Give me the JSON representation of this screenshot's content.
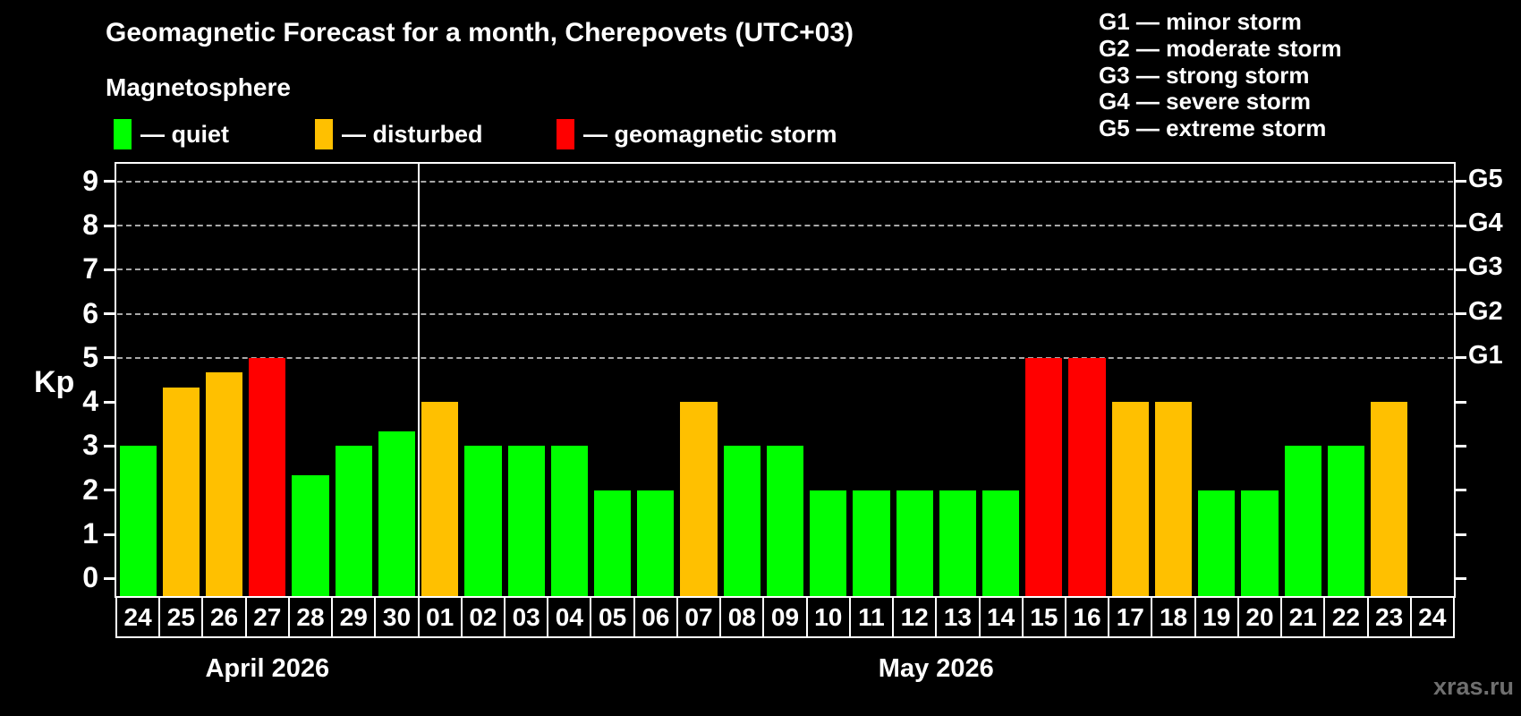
{
  "page": {
    "title": "Geomagnetic Forecast for a month, Cherepovets (UTC+03)",
    "subtitle": "Magnetosphere",
    "watermark": "xras.ru"
  },
  "legend": {
    "items": [
      {
        "key": "quiet",
        "label": "— quiet",
        "color": "#00ff00"
      },
      {
        "key": "disturbed",
        "label": "— disturbed",
        "color": "#ffc000"
      },
      {
        "key": "storm",
        "label": "— geomagnetic storm",
        "color": "#ff0000"
      }
    ]
  },
  "g_legend": {
    "lines": [
      "G1 — minor storm",
      "G2 — moderate storm",
      "G3 — strong storm",
      "G4 — severe storm",
      "G5 — extreme storm"
    ]
  },
  "chart_data": {
    "type": "bar",
    "title": "Geomagnetic Forecast for a month, Cherepovets (UTC+03)",
    "ylabel": "Kp",
    "ylim": [
      -0.4,
      9.4
    ],
    "yticks": [
      0,
      1,
      2,
      3,
      4,
      5,
      6,
      7,
      8,
      9
    ],
    "gridlines_at": [
      5,
      6,
      7,
      8,
      9
    ],
    "grid": "dashed-above-5-only",
    "legend_position": "top-left",
    "right_scale": [
      {
        "kp": 5,
        "label": "G1"
      },
      {
        "kp": 6,
        "label": "G2"
      },
      {
        "kp": 7,
        "label": "G3"
      },
      {
        "kp": 8,
        "label": "G4"
      },
      {
        "kp": 9,
        "label": "G5"
      }
    ],
    "status_colors": {
      "quiet": "#00ff00",
      "disturbed": "#ffc000",
      "storm": "#ff0000"
    },
    "months": [
      {
        "label": "April 2026",
        "start_index": 0,
        "days": 7
      },
      {
        "label": "May 2026",
        "start_index": 7,
        "days": 24
      }
    ],
    "bars": [
      {
        "day": "24",
        "kp": 3.0,
        "status": "quiet"
      },
      {
        "day": "25",
        "kp": 4.33,
        "status": "disturbed"
      },
      {
        "day": "26",
        "kp": 4.67,
        "status": "disturbed"
      },
      {
        "day": "27",
        "kp": 5.0,
        "status": "storm"
      },
      {
        "day": "28",
        "kp": 2.33,
        "status": "quiet"
      },
      {
        "day": "29",
        "kp": 3.0,
        "status": "quiet"
      },
      {
        "day": "30",
        "kp": 3.33,
        "status": "quiet"
      },
      {
        "day": "01",
        "kp": 4.0,
        "status": "disturbed"
      },
      {
        "day": "02",
        "kp": 3.0,
        "status": "quiet"
      },
      {
        "day": "03",
        "kp": 3.0,
        "status": "quiet"
      },
      {
        "day": "04",
        "kp": 3.0,
        "status": "quiet"
      },
      {
        "day": "05",
        "kp": 2.0,
        "status": "quiet"
      },
      {
        "day": "06",
        "kp": 2.0,
        "status": "quiet"
      },
      {
        "day": "07",
        "kp": 4.0,
        "status": "disturbed"
      },
      {
        "day": "08",
        "kp": 3.0,
        "status": "quiet"
      },
      {
        "day": "09",
        "kp": 3.0,
        "status": "quiet"
      },
      {
        "day": "10",
        "kp": 2.0,
        "status": "quiet"
      },
      {
        "day": "11",
        "kp": 2.0,
        "status": "quiet"
      },
      {
        "day": "12",
        "kp": 2.0,
        "status": "quiet"
      },
      {
        "day": "13",
        "kp": 2.0,
        "status": "quiet"
      },
      {
        "day": "14",
        "kp": 2.0,
        "status": "quiet"
      },
      {
        "day": "15",
        "kp": 5.0,
        "status": "storm"
      },
      {
        "day": "16",
        "kp": 5.0,
        "status": "storm"
      },
      {
        "day": "17",
        "kp": 4.0,
        "status": "disturbed"
      },
      {
        "day": "18",
        "kp": 4.0,
        "status": "disturbed"
      },
      {
        "day": "19",
        "kp": 2.0,
        "status": "quiet"
      },
      {
        "day": "20",
        "kp": 2.0,
        "status": "quiet"
      },
      {
        "day": "21",
        "kp": 3.0,
        "status": "quiet"
      },
      {
        "day": "22",
        "kp": 3.0,
        "status": "quiet"
      },
      {
        "day": "23",
        "kp": 4.0,
        "status": "disturbed"
      },
      {
        "day": "24",
        "kp": null,
        "status": null
      }
    ]
  }
}
